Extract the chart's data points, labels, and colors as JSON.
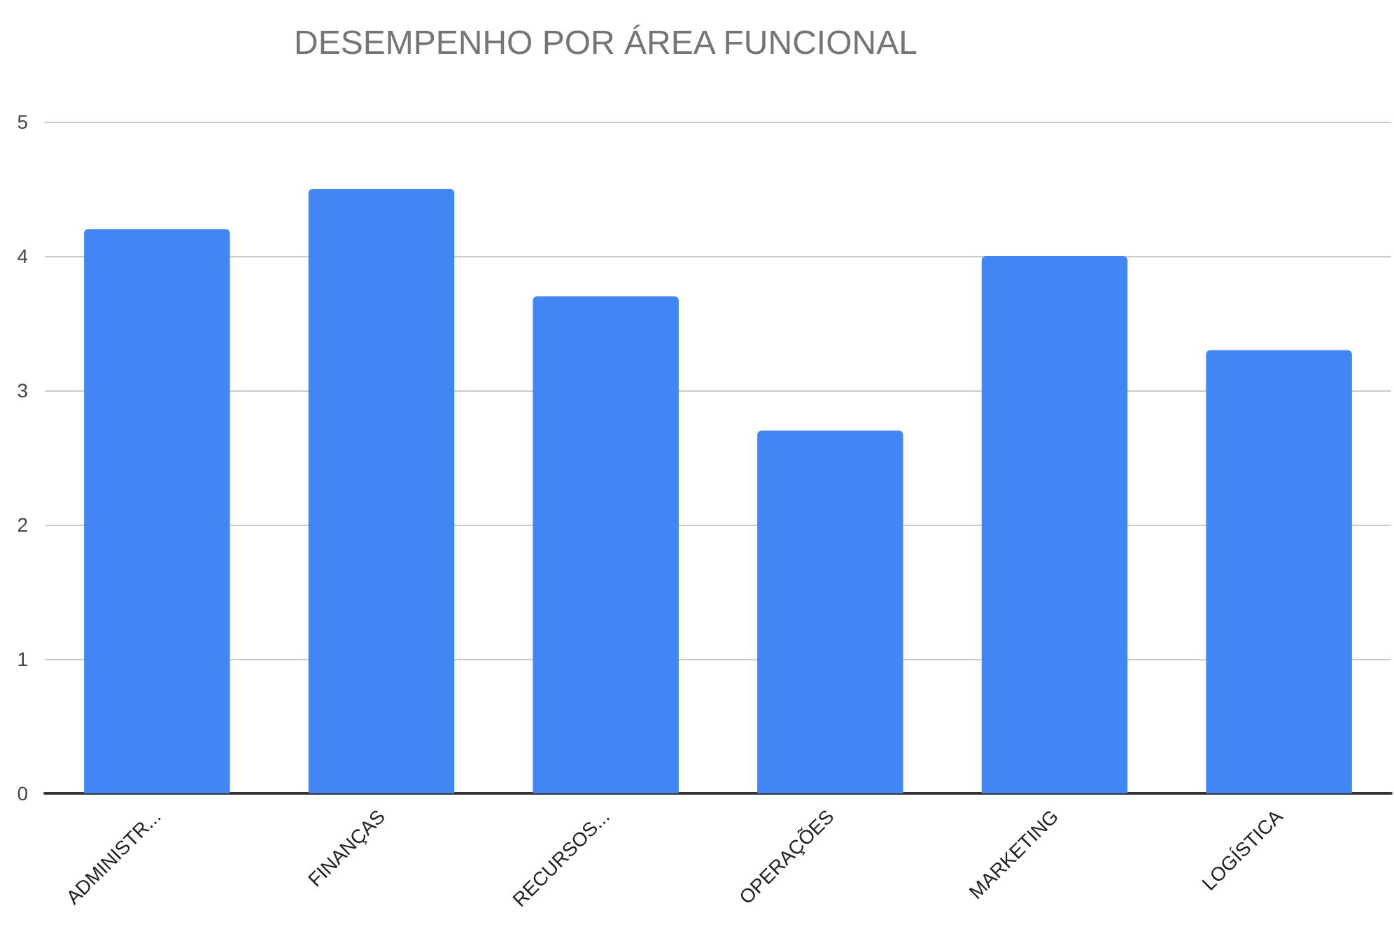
{
  "chart_data": {
    "type": "bar",
    "title": "DESEMPENHO POR ÁREA FUNCIONAL",
    "categories": [
      "ADMINISTR...",
      "FINANÇAS",
      "RECURSOS...",
      "OPERAÇÕES",
      "MARKETING",
      "LOGÍSTICA"
    ],
    "values": [
      4.2,
      4.5,
      3.7,
      2.7,
      4.0,
      3.3
    ],
    "color": "#4285f4",
    "ylim": [
      0,
      5
    ],
    "yticks": [
      0,
      1,
      2,
      3,
      4,
      5
    ],
    "grid": "y"
  }
}
